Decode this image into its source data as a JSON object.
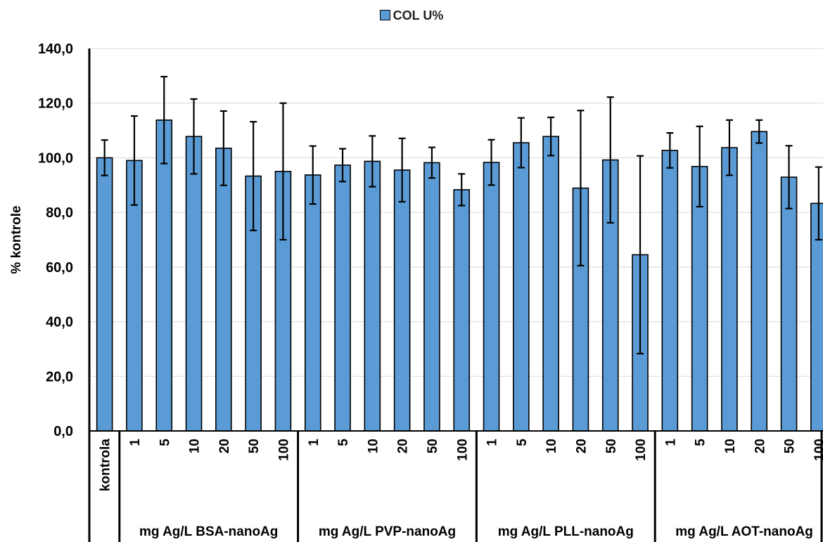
{
  "chart_data": {
    "type": "bar",
    "ylabel": "% kontrole",
    "ylim": [
      0,
      140
    ],
    "yticks": [
      "0,0",
      "20,0",
      "40,0",
      "60,0",
      "80,0",
      "100,0",
      "120,0",
      "140,0"
    ],
    "grid": true,
    "legend_position": "top-center",
    "series": [
      {
        "name": "COL U%",
        "color": "#5b9bd5",
        "categories": [
          "kontrola",
          "1",
          "5",
          "10",
          "20",
          "50",
          "100",
          "1",
          "5",
          "10",
          "20",
          "50",
          "100",
          "1",
          "5",
          "10",
          "20",
          "50",
          "100",
          "1",
          "5",
          "10",
          "20",
          "50",
          "100"
        ],
        "values": [
          100.0,
          99.0,
          113.8,
          107.8,
          103.5,
          93.3,
          95.0,
          93.7,
          97.3,
          98.7,
          95.5,
          98.2,
          88.3,
          98.3,
          105.5,
          107.8,
          88.9,
          99.2,
          64.5,
          102.7,
          96.8,
          103.7,
          109.6,
          92.9,
          83.3
        ],
        "errors": [
          6.5,
          16.3,
          15.9,
          13.7,
          13.6,
          19.9,
          25.0,
          10.6,
          6.0,
          9.3,
          11.6,
          5.6,
          5.8,
          8.3,
          9.1,
          7.0,
          28.4,
          23.0,
          36.2,
          6.4,
          14.7,
          10.1,
          4.2,
          11.5,
          13.3
        ]
      }
    ],
    "groups": [
      {
        "label": "",
        "count": 1
      },
      {
        "label": "mg Ag/L BSA-nanoAg",
        "count": 6
      },
      {
        "label": "mg Ag/L PVP-nanoAg",
        "count": 6
      },
      {
        "label": "mg Ag/L PLL-nanoAg",
        "count": 6
      },
      {
        "label": "mg Ag/L AOT-nanoAg",
        "count": 6
      }
    ]
  }
}
